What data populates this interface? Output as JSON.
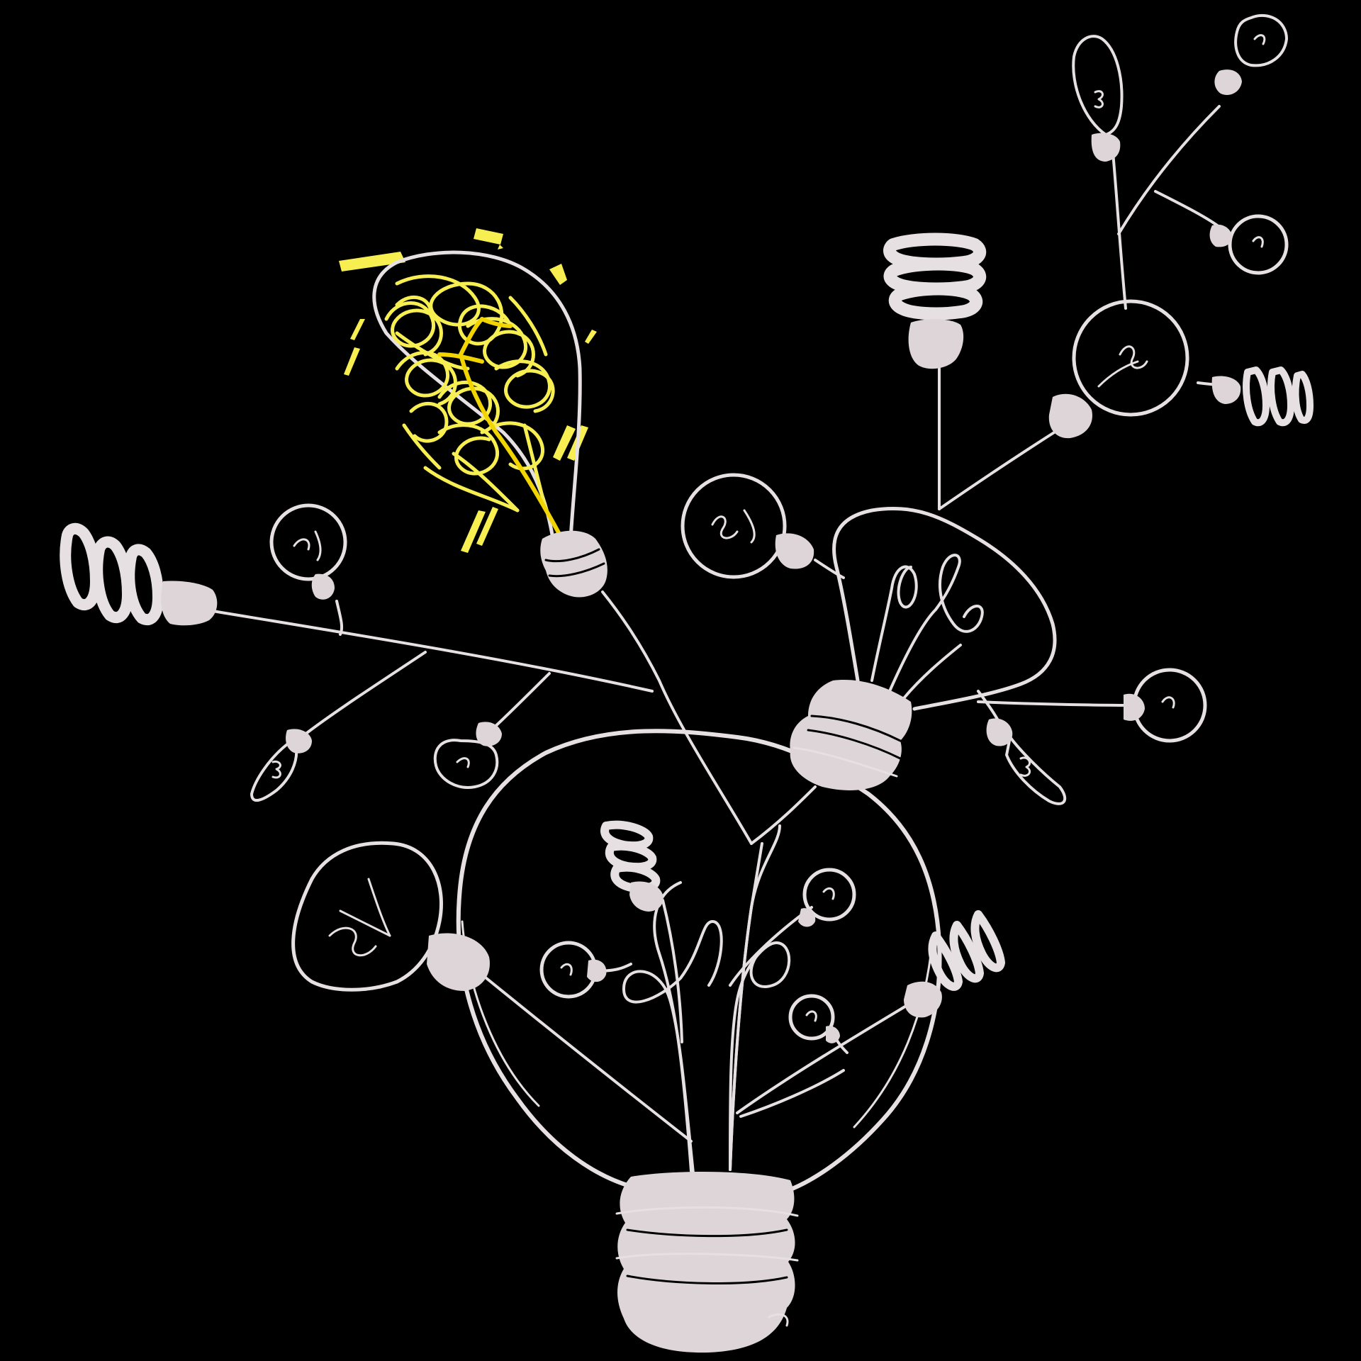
{
  "colors": {
    "background": "#000000",
    "line": "#e6e0e2",
    "base_fill": "#ddd5d8",
    "glow_yellow": "#f7ef52",
    "glow_core": "#f2d400"
  },
  "illustration": {
    "subject": "lightbulb-idea-tree",
    "icons": [
      "large-bulb-icon",
      "pear-bulb-icon",
      "glowing-bulb-icon",
      "spiral-cfl-icon",
      "candle-bulb-icon",
      "round-bulb-icon",
      "small-bulb-icon"
    ]
  }
}
